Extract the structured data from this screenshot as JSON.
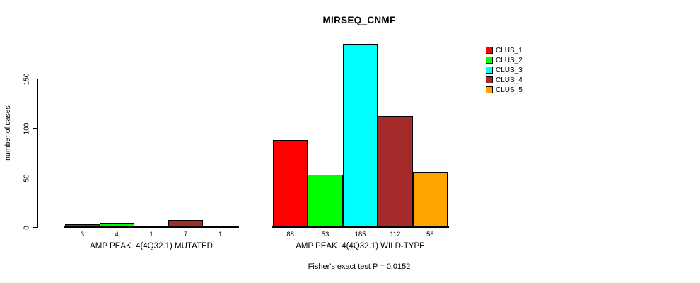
{
  "chart_data": {
    "type": "bar",
    "title": "MIRSEQ_CNMF",
    "ylabel": "number of cases",
    "xlabel": "",
    "ylim": [
      0,
      185
    ],
    "yticks": [
      0,
      50,
      100,
      150
    ],
    "grid": false,
    "legend_position": "top-right",
    "categories": [
      "CLUS_1",
      "CLUS_2",
      "CLUS_3",
      "CLUS_4",
      "CLUS_5"
    ],
    "colors": [
      "#FF0000",
      "#00FF00",
      "#00FFFF",
      "#A52A2A",
      "#FFA500"
    ],
    "groups": [
      {
        "label": "AMP PEAK  4(4Q32.1) MUTATED",
        "values": [
          3,
          4,
          1,
          7,
          1
        ]
      },
      {
        "label": "AMP PEAK  4(4Q32.1) WILD-TYPE",
        "values": [
          88,
          53,
          185,
          112,
          56
        ]
      }
    ],
    "annotation": "Fisher's exact test P = 0.0152"
  }
}
